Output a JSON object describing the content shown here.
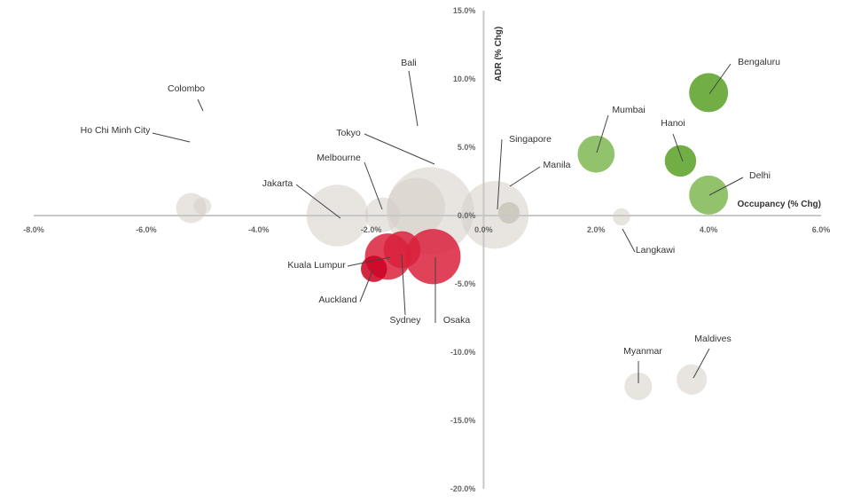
{
  "chart_data": {
    "type": "scatter",
    "subtype": "bubble",
    "xlabel": "Occupancy (% Chg)",
    "ylabel": "ADR (% Chg)",
    "xlim": [
      -8.0,
      6.0
    ],
    "ylim": [
      -20.0,
      15.0
    ],
    "x_ticks": [
      -8,
      -6,
      -4,
      -2,
      0,
      2,
      4,
      6
    ],
    "y_ticks": [
      -20,
      -15,
      -10,
      -5,
      0,
      5,
      10,
      15
    ],
    "x_tick_labels": [
      "-8.0%",
      "-6.0%",
      "-4.0%",
      "-2.0%",
      "0.0%",
      "2.0%",
      "4.0%",
      "6.0%"
    ],
    "y_tick_labels": [
      "-20.0%",
      "-15.0%",
      "-10.0%",
      "-5.0%",
      "0.0%",
      "5.0%",
      "10.0%",
      "15.0%"
    ],
    "colors": {
      "neutral": "#d5cec6",
      "neutral_dark": "#b9b4a4",
      "positive": "#6aaa3c",
      "positive_light": "#8cc064",
      "negative": "#d9213c",
      "negative_dark": "#cc0022",
      "axis": "#c8c8c8",
      "leader": "#444444"
    },
    "points": [
      {
        "name": "Colombo",
        "x": -5.0,
        "y": 0.7,
        "size": 0.2,
        "color": "neutral"
      },
      {
        "name": "Ho Chi Minh City",
        "x": -5.2,
        "y": 0.55,
        "size": 0.6,
        "color": "neutral"
      },
      {
        "name": "Bali",
        "x": -1.2,
        "y": 0.65,
        "size": 2.2,
        "color": "neutral"
      },
      {
        "name": "Tokyo",
        "x": -0.95,
        "y": 0.35,
        "size": 5.0,
        "color": "neutral"
      },
      {
        "name": "Melbourne",
        "x": -1.8,
        "y": 0.05,
        "size": 0.8,
        "color": "neutral"
      },
      {
        "name": "Jakarta",
        "x": -2.6,
        "y": 0.0,
        "size": 2.5,
        "color": "neutral"
      },
      {
        "name": "Singapore",
        "x": 0.2,
        "y": 0.05,
        "size": 3.0,
        "color": "neutral"
      },
      {
        "name": "Manila",
        "x": 0.45,
        "y": 0.2,
        "size": 0.3,
        "color": "neutral_dark"
      },
      {
        "name": "Langkawi",
        "x": 2.45,
        "y": -0.1,
        "size": 0.2,
        "color": "neutral"
      },
      {
        "name": "Myanmar",
        "x": 2.75,
        "y": -12.5,
        "size": 0.5,
        "color": "neutral"
      },
      {
        "name": "Maldives",
        "x": 3.7,
        "y": -12.0,
        "size": 0.6,
        "color": "neutral"
      },
      {
        "name": "Mumbai",
        "x": 2.0,
        "y": 4.5,
        "size": 0.9,
        "color": "positive_light"
      },
      {
        "name": "Hanoi",
        "x": 3.5,
        "y": 4.0,
        "size": 0.65,
        "color": "positive"
      },
      {
        "name": "Bengaluru",
        "x": 4.0,
        "y": 9.0,
        "size": 1.0,
        "color": "positive"
      },
      {
        "name": "Delhi",
        "x": 4.0,
        "y": 1.5,
        "size": 1.0,
        "color": "positive_light"
      },
      {
        "name": "Kuala Lumpur",
        "x": -1.7,
        "y": -3.0,
        "size": 1.4,
        "color": "negative"
      },
      {
        "name": "Sydney",
        "x": -1.45,
        "y": -2.5,
        "size": 0.9,
        "color": "negative"
      },
      {
        "name": "Auckland",
        "x": -1.95,
        "y": -3.9,
        "size": 0.45,
        "color": "negative_dark"
      },
      {
        "name": "Osaka",
        "x": -0.9,
        "y": -3.0,
        "size": 2.0,
        "color": "negative"
      }
    ]
  }
}
